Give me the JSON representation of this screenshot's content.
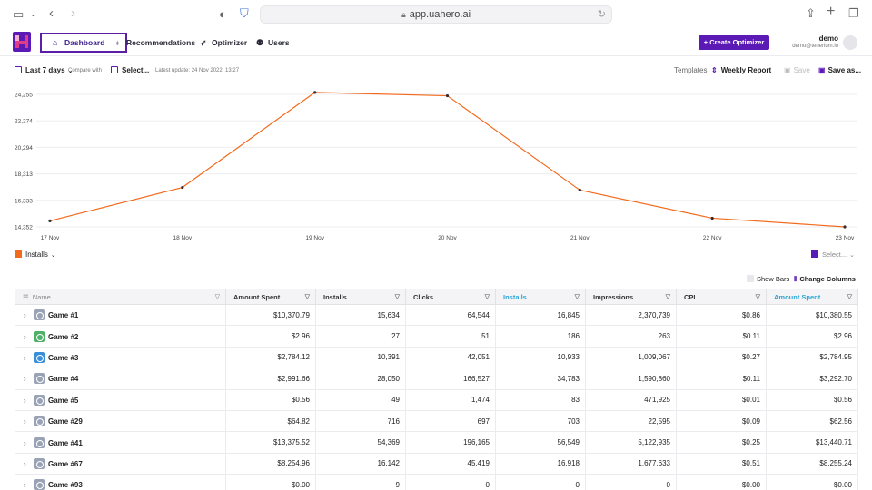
{
  "browser": {
    "url": "app.uahero.ai"
  },
  "nav": {
    "items": [
      {
        "label": "Dashboard",
        "icon": "home-icon"
      },
      {
        "label": "Recommendations",
        "icon": "lightbulb-icon"
      },
      {
        "label": "Optimizer",
        "icon": "rocket-icon"
      },
      {
        "label": "Users",
        "icon": "users-icon"
      }
    ],
    "create_button": "+ Create Optimizer",
    "user": {
      "name": "demo",
      "email": "demo@tenerium.io"
    }
  },
  "toolbar": {
    "date_range": "Last 7 days",
    "compare_label": "Compare with",
    "compare_value": "Select...",
    "latest_update": "Latest update: 24 Nov 2022, 13:27",
    "templates_label": "Templates:",
    "template_value": "Weekly Report",
    "save": "Save",
    "save_as": "Save as..."
  },
  "chart_data": {
    "type": "line",
    "x": [
      "17 Nov",
      "18 Nov",
      "19 Nov",
      "20 Nov",
      "21 Nov",
      "22 Nov",
      "23 Nov"
    ],
    "series": [
      {
        "name": "Installs",
        "values": [
          14800,
          17300,
          24400,
          24150,
          17100,
          15000,
          14352
        ],
        "color": "#f26b1d"
      }
    ],
    "y_ticks": [
      "24,255",
      "22,274",
      "20,294",
      "18,313",
      "16,333",
      "14,352"
    ],
    "ylim": [
      14352,
      24255
    ],
    "grid": true
  },
  "chart_legend": {
    "left_series": "Installs",
    "right_series": "Select..."
  },
  "table_options": {
    "show_bars": "Show Bars",
    "change_columns": "Change Columns"
  },
  "table": {
    "columns": [
      "Name",
      "Amount Spent",
      "Installs",
      "Clicks",
      "Installs",
      "Impressions",
      "CPI",
      "Amount Spent"
    ],
    "rows": [
      [
        "Game #1",
        "$10,370.79",
        "15,634",
        "64,544",
        "16,845",
        "2,370,739",
        "$0.86",
        "$10,380.55"
      ],
      [
        "Game #2",
        "$2.96",
        "27",
        "51",
        "186",
        "263",
        "$0.11",
        "$2.96"
      ],
      [
        "Game #3",
        "$2,784.12",
        "10,391",
        "42,051",
        "10,933",
        "1,009,067",
        "$0.27",
        "$2,784.95"
      ],
      [
        "Game #4",
        "$2,991.66",
        "28,050",
        "166,527",
        "34,783",
        "1,590,860",
        "$0.11",
        "$3,292.70"
      ],
      [
        "Game #5",
        "$0.56",
        "49",
        "1,474",
        "83",
        "471,925",
        "$0.01",
        "$0.56"
      ],
      [
        "Game #29",
        "$64.82",
        "716",
        "697",
        "703",
        "22,595",
        "$0.09",
        "$62.56"
      ],
      [
        "Game #41",
        "$13,375.52",
        "54,369",
        "196,165",
        "56,549",
        "5,122,935",
        "$0.25",
        "$13,440.71"
      ],
      [
        "Game #67",
        "$8,254.96",
        "16,142",
        "45,419",
        "16,918",
        "1,677,633",
        "$0.51",
        "$8,255.24"
      ],
      [
        "Game #93",
        "$0.00",
        "9",
        "0",
        "0",
        "0",
        "$0.00",
        "$0.00"
      ]
    ]
  },
  "colors": {
    "brand": "#5b19b6",
    "series": "#f26b1d",
    "highlight_column": "#2aa5d6"
  }
}
